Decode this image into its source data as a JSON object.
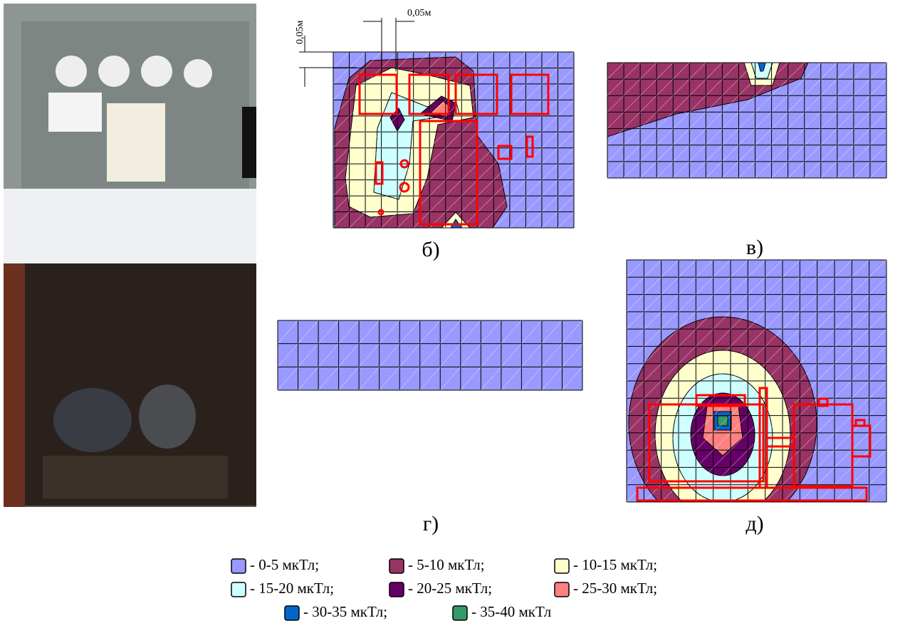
{
  "dimensions": [
    "0,05м",
    "0,05м"
  ],
  "panels": [
    {
      "label": "б)"
    },
    {
      "label": "в)"
    },
    {
      "label": "г)"
    },
    {
      "label": "д)"
    }
  ],
  "legend": [
    {
      "label": "- 0-5 мкТл;",
      "color": "#9999ff"
    },
    {
      "label": "- 5-10 мкТл;",
      "color": "#993366"
    },
    {
      "label": "- 10-15 мкТл;",
      "color": "#ffffcc"
    },
    {
      "label": "- 15-20 мкТл;",
      "color": "#ccffff"
    },
    {
      "label": "- 20-25 мкТл;",
      "color": "#660066"
    },
    {
      "label": "- 25-30 мкТл;",
      "color": "#ff8080"
    },
    {
      "label": "- 30-35 мкТл;",
      "color": "#0066cc"
    },
    {
      "label": "- 35-40 мкТл",
      "color": "#339966"
    }
  ]
}
